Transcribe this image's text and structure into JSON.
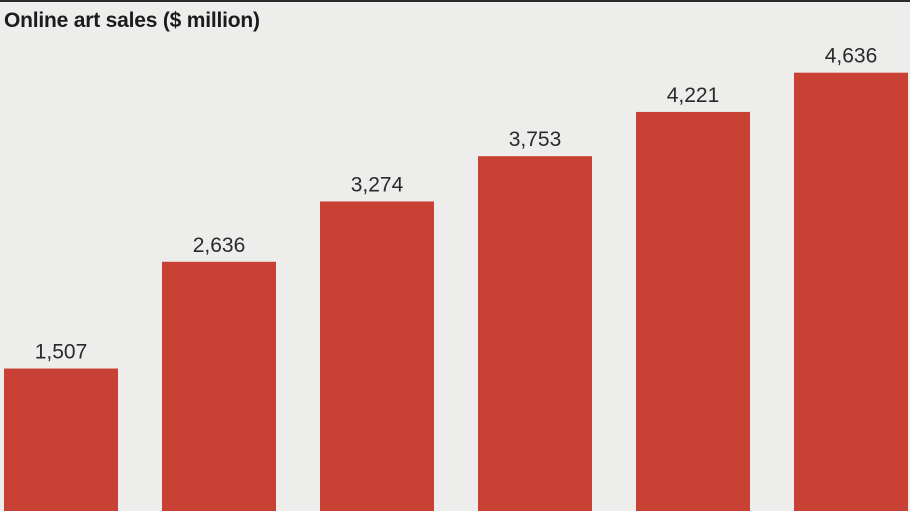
{
  "title": "Online art sales ($ million)",
  "colors": {
    "bar": "#c94035",
    "background": "#ededeb",
    "rule": "#2b2b2b"
  },
  "chart_data": {
    "type": "bar",
    "title": "Online art sales ($ million)",
    "xlabel": "",
    "ylabel": "",
    "categories": [
      "",
      "",
      "",
      "",
      "",
      ""
    ],
    "values": [
      1507,
      2636,
      3274,
      3753,
      4221,
      4636
    ],
    "value_labels": [
      "1,507",
      "2,636",
      "3,274",
      "3,753",
      "4,221",
      "4,636"
    ],
    "ylim": [
      0,
      4950
    ],
    "grid": false,
    "legend": "none"
  }
}
